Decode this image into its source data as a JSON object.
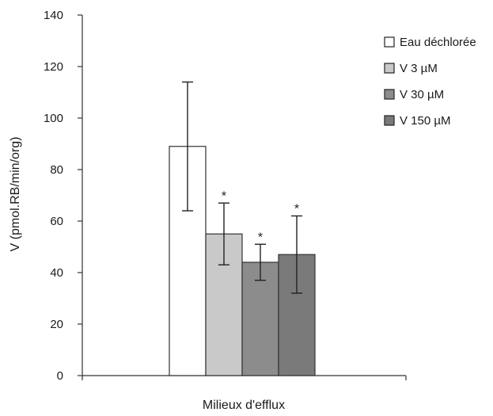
{
  "chart_data": {
    "type": "bar",
    "xlabel": "Milieux d'efflux",
    "ylabel": "V (pmol.RB/min/org)",
    "ylim": [
      0,
      140
    ],
    "yticks": [
      0,
      20,
      40,
      60,
      80,
      100,
      120,
      140
    ],
    "grid": false,
    "legend_position": "right",
    "significance_marker": "*",
    "series": [
      {
        "name": "Eau déchlorée",
        "value": 89,
        "error": 25,
        "fill": "#ffffff",
        "significant": false
      },
      {
        "name": "V 3 µM",
        "value": 55,
        "error": 12,
        "fill": "#c9c9c9",
        "significant": true
      },
      {
        "name": "V 30 µM",
        "value": 44,
        "error": 7,
        "fill": "#8c8c8c",
        "significant": true
      },
      {
        "name": "V 150 µM",
        "value": 47,
        "error": 15,
        "fill": "#7a7a7a",
        "significant": true
      }
    ]
  }
}
